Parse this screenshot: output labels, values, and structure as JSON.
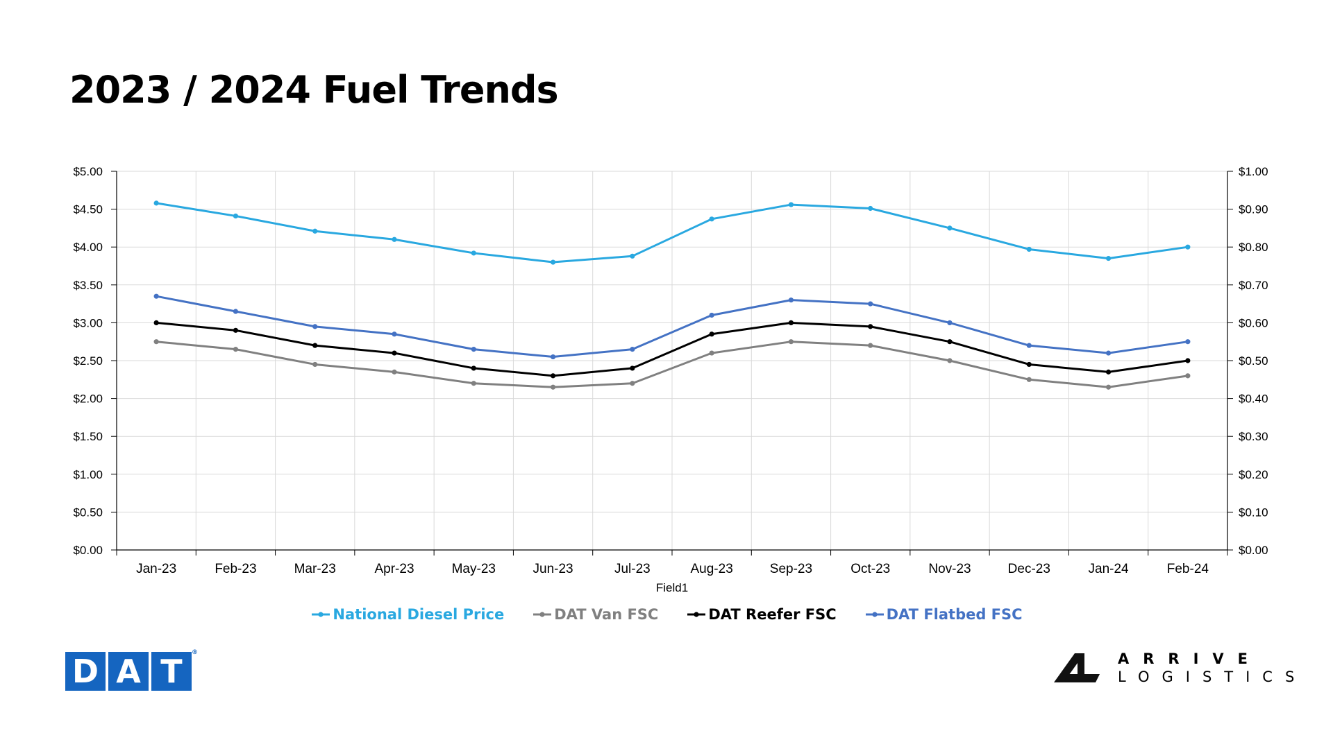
{
  "title": "2023 / 2024 Fuel Trends",
  "chart_data": {
    "type": "line",
    "title": "2023 / 2024 Fuel Trends",
    "xlabel": "Field1",
    "categories": [
      "Jan-23",
      "Feb-23",
      "Mar-23",
      "Apr-23",
      "May-23",
      "Jun-23",
      "Jul-23",
      "Aug-23",
      "Sep-23",
      "Oct-23",
      "Nov-23",
      "Dec-23",
      "Jan-24",
      "Feb-24"
    ],
    "left_axis": {
      "ylim": [
        0,
        5
      ],
      "ticks": [
        0,
        0.5,
        1,
        1.5,
        2,
        2.5,
        3,
        3.5,
        4,
        4.5,
        5
      ],
      "tick_labels": [
        "$0.00",
        "$0.50",
        "$1.00",
        "$1.50",
        "$2.00",
        "$2.50",
        "$3.00",
        "$3.50",
        "$4.00",
        "$4.50",
        "$5.00"
      ]
    },
    "right_axis": {
      "ylim": [
        0,
        1
      ],
      "ticks": [
        0,
        0.1,
        0.2,
        0.3,
        0.4,
        0.5,
        0.6,
        0.7,
        0.8,
        0.9,
        1
      ],
      "tick_labels": [
        "$0.00",
        "$0.10",
        "$0.20",
        "$0.30",
        "$0.40",
        "$0.50",
        "$0.60",
        "$0.70",
        "$0.80",
        "$0.90",
        "$1.00"
      ]
    },
    "grid": true,
    "legend_position": "bottom",
    "series": [
      {
        "name": "National Diesel Price",
        "axis": "left",
        "color": "#29a8e0",
        "values": [
          4.58,
          4.41,
          4.21,
          4.1,
          3.92,
          3.8,
          3.88,
          4.37,
          4.56,
          4.51,
          4.25,
          3.97,
          3.85,
          4.0
        ]
      },
      {
        "name": "DAT Van FSC",
        "axis": "right",
        "color": "#808080",
        "values": [
          0.55,
          0.53,
          0.49,
          0.47,
          0.44,
          0.43,
          0.44,
          0.52,
          0.55,
          0.54,
          0.5,
          0.45,
          0.43,
          0.46
        ]
      },
      {
        "name": "DAT Reefer FSC",
        "axis": "right",
        "color": "#000000",
        "values": [
          0.6,
          0.58,
          0.54,
          0.52,
          0.48,
          0.46,
          0.48,
          0.57,
          0.6,
          0.59,
          0.55,
          0.49,
          0.47,
          0.5
        ]
      },
      {
        "name": "DAT Flatbed FSC",
        "axis": "right",
        "color": "#4472c4",
        "values": [
          0.67,
          0.63,
          0.59,
          0.57,
          0.53,
          0.51,
          0.53,
          0.62,
          0.66,
          0.65,
          0.6,
          0.54,
          0.52,
          0.55
        ]
      }
    ]
  },
  "logos": {
    "dat": {
      "letters": [
        "D",
        "A",
        "T"
      ],
      "mark": "®",
      "color": "#1565c0"
    },
    "arrive": {
      "line1": "ARRIVE",
      "line2": "LOGISTICS",
      "icon": "arrive-a-mark-icon"
    }
  }
}
